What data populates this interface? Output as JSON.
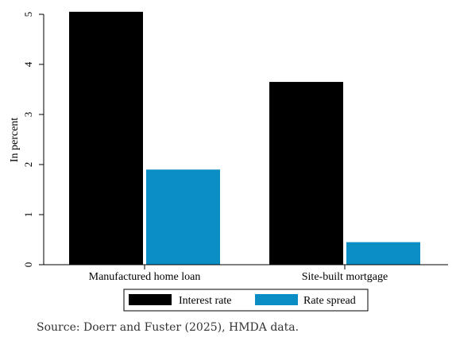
{
  "chart_data": {
    "type": "bar",
    "categories": [
      "Manufactured home loan",
      "Site-built mortgage"
    ],
    "series": [
      {
        "name": "Interest rate",
        "values": [
          5.05,
          3.65
        ],
        "color": "#000000"
      },
      {
        "name": "Rate spread",
        "values": [
          1.9,
          0.45
        ],
        "color": "#0a8ec4"
      }
    ],
    "ylabel": "In percent",
    "xlabel": "",
    "ylim": [
      0,
      5
    ],
    "yticks": [
      0,
      1,
      2,
      3,
      4,
      5
    ],
    "grid": false,
    "legend_position": "bottom"
  },
  "footer": {
    "source": "Source: Doerr and Fuster (2025), HMDA data."
  }
}
